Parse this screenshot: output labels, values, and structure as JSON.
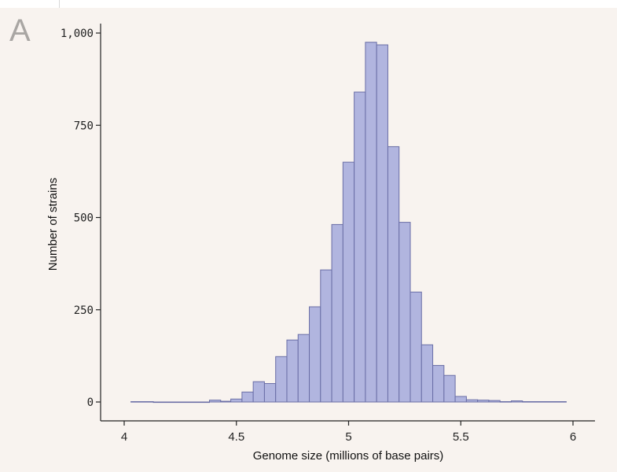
{
  "panel_label": "A",
  "colors": {
    "background": "#f8f3ef",
    "bar_fill": "#b1b5df",
    "bar_stroke": "#6a6ea6",
    "axis": "#222222",
    "panel_label": "#a9a6a3"
  },
  "chart_data": {
    "type": "bar",
    "title": "",
    "xlabel": "Genome size (millions of base pairs)",
    "ylabel": "Number of strains",
    "xlim": [
      3.95,
      6.05
    ],
    "ylim": [
      -25,
      1035
    ],
    "x_ticks": [
      4,
      4.5,
      5,
      5.5,
      6
    ],
    "x_tick_labels": [
      "4",
      "4.5",
      "5",
      "5.5",
      "6"
    ],
    "y_ticks": [
      0,
      250,
      500,
      750,
      1000
    ],
    "y_tick_labels": [
      "0",
      "250",
      "500",
      "750",
      "1,000"
    ],
    "grid": false,
    "bin_width": 0.05,
    "bins": [
      {
        "x0": 4.03,
        "x1": 4.13,
        "value": 1
      },
      {
        "x0": 4.13,
        "x1": 4.38,
        "value": 0
      },
      {
        "x0": 4.38,
        "x1": 4.43,
        "value": 5
      },
      {
        "x0": 4.43,
        "x1": 4.475,
        "value": 2
      },
      {
        "x0": 4.475,
        "x1": 4.525,
        "value": 8
      },
      {
        "x0": 4.525,
        "x1": 4.575,
        "value": 27
      },
      {
        "x0": 4.575,
        "x1": 4.625,
        "value": 55
      },
      {
        "x0": 4.625,
        "x1": 4.675,
        "value": 50
      },
      {
        "x0": 4.675,
        "x1": 4.725,
        "value": 123
      },
      {
        "x0": 4.725,
        "x1": 4.775,
        "value": 168
      },
      {
        "x0": 4.775,
        "x1": 4.825,
        "value": 183
      },
      {
        "x0": 4.825,
        "x1": 4.875,
        "value": 258
      },
      {
        "x0": 4.875,
        "x1": 4.925,
        "value": 358
      },
      {
        "x0": 4.925,
        "x1": 4.975,
        "value": 481
      },
      {
        "x0": 4.975,
        "x1": 5.025,
        "value": 650
      },
      {
        "x0": 5.025,
        "x1": 5.075,
        "value": 840
      },
      {
        "x0": 5.075,
        "x1": 5.125,
        "value": 975
      },
      {
        "x0": 5.125,
        "x1": 5.175,
        "value": 968
      },
      {
        "x0": 5.175,
        "x1": 5.225,
        "value": 692
      },
      {
        "x0": 5.225,
        "x1": 5.275,
        "value": 487
      },
      {
        "x0": 5.275,
        "x1": 5.325,
        "value": 298
      },
      {
        "x0": 5.325,
        "x1": 5.375,
        "value": 155
      },
      {
        "x0": 5.375,
        "x1": 5.425,
        "value": 99
      },
      {
        "x0": 5.425,
        "x1": 5.475,
        "value": 72
      },
      {
        "x0": 5.475,
        "x1": 5.525,
        "value": 15
      },
      {
        "x0": 5.525,
        "x1": 5.575,
        "value": 6
      },
      {
        "x0": 5.575,
        "x1": 5.625,
        "value": 5
      },
      {
        "x0": 5.625,
        "x1": 5.675,
        "value": 4
      },
      {
        "x0": 5.675,
        "x1": 5.725,
        "value": 1
      },
      {
        "x0": 5.725,
        "x1": 5.775,
        "value": 3
      },
      {
        "x0": 5.775,
        "x1": 5.97,
        "value": 1
      }
    ]
  }
}
